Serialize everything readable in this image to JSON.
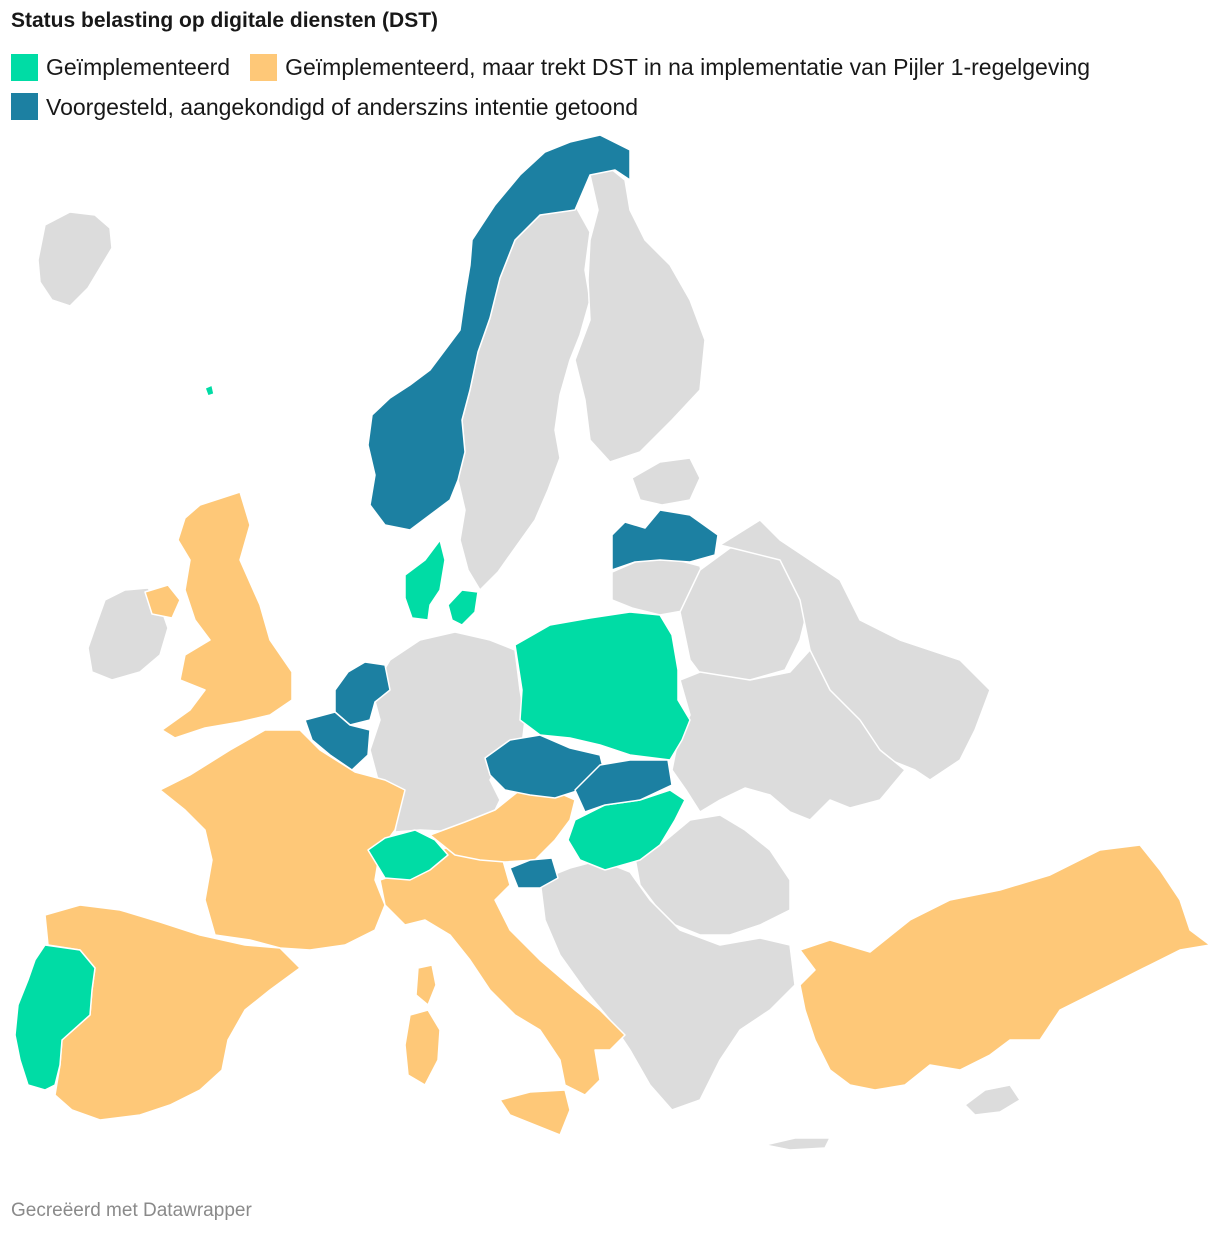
{
  "title": "Status belasting op digitale diensten (DST)",
  "legend": [
    {
      "label": "Geïmplementeerd",
      "color": "#00dca5"
    },
    {
      "label": "Geïmplementeerd, maar trekt DST in na implementatie van Pijler 1-regelgeving",
      "color": "#fec878"
    },
    {
      "label": "Voorgesteld, aangekondigd of anderszins intentie getoond",
      "color": "#1c80a2"
    }
  ],
  "colors": {
    "no_data": "#dcdcdc",
    "implemented": "#00dca5",
    "implemented_withdraw": "#fec878",
    "proposed": "#1c80a2"
  },
  "map": {
    "countries": [
      {
        "name": "Portugal",
        "status": "implemented"
      },
      {
        "name": "Spain",
        "status": "implemented_withdraw"
      },
      {
        "name": "France",
        "status": "implemented_withdraw"
      },
      {
        "name": "Italy",
        "status": "implemented_withdraw"
      },
      {
        "name": "Austria",
        "status": "implemented_withdraw"
      },
      {
        "name": "United Kingdom",
        "status": "implemented_withdraw"
      },
      {
        "name": "Turkey",
        "status": "implemented_withdraw"
      },
      {
        "name": "Switzerland",
        "status": "implemented"
      },
      {
        "name": "Denmark",
        "status": "implemented"
      },
      {
        "name": "Poland",
        "status": "implemented"
      },
      {
        "name": "Hungary",
        "status": "implemented"
      },
      {
        "name": "Norway",
        "status": "proposed"
      },
      {
        "name": "Netherlands",
        "status": "proposed"
      },
      {
        "name": "Belgium",
        "status": "proposed"
      },
      {
        "name": "Czech Republic",
        "status": "proposed"
      },
      {
        "name": "Slovakia",
        "status": "proposed"
      },
      {
        "name": "Slovenia",
        "status": "proposed"
      },
      {
        "name": "Latvia",
        "status": "proposed"
      }
    ]
  },
  "footer": "Gecreëerd met Datawrapper"
}
